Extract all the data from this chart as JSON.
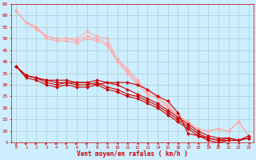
{
  "xlabel": "Vent moyen/en rafales ( km/h )",
  "bg_color": "#cceeff",
  "grid_color": "#aacccc",
  "xlim": [
    -0.5,
    23.5
  ],
  "ylim": [
    5,
    65
  ],
  "yticks": [
    5,
    10,
    15,
    20,
    25,
    30,
    35,
    40,
    45,
    50,
    55,
    60,
    65
  ],
  "xticks": [
    0,
    1,
    2,
    3,
    4,
    5,
    6,
    7,
    8,
    9,
    10,
    11,
    12,
    13,
    14,
    15,
    16,
    17,
    18,
    19,
    20,
    21,
    22,
    23
  ],
  "lines_light": [
    [
      62,
      57,
      54,
      51,
      50,
      50,
      50,
      53,
      51,
      50,
      41,
      37,
      32,
      27,
      25,
      21,
      16,
      14,
      11,
      10,
      11,
      10,
      14,
      8
    ],
    [
      62,
      57,
      55,
      51,
      50,
      50,
      49,
      51,
      50,
      48,
      41,
      36,
      31,
      27,
      25,
      21,
      17,
      14,
      11,
      10,
      11,
      10,
      14,
      8
    ],
    [
      62,
      57,
      55,
      50,
      49,
      49,
      48,
      50,
      49,
      47,
      40,
      35,
      30,
      26,
      24,
      20,
      16,
      14,
      11,
      10,
      11,
      10,
      14,
      8
    ]
  ],
  "lines_dark": [
    [
      38,
      34,
      33,
      32,
      31,
      31,
      31,
      31,
      30,
      31,
      31,
      31,
      30,
      28,
      25,
      23,
      18,
      9,
      8,
      7,
      6,
      6,
      6,
      8
    ],
    [
      38,
      34,
      33,
      32,
      32,
      32,
      31,
      31,
      32,
      31,
      30,
      28,
      26,
      24,
      22,
      19,
      16,
      13,
      10,
      8,
      7,
      7,
      6,
      7
    ],
    [
      38,
      34,
      33,
      31,
      30,
      31,
      30,
      30,
      31,
      29,
      28,
      26,
      25,
      23,
      21,
      18,
      15,
      12,
      9,
      7,
      6,
      7,
      6,
      7
    ],
    [
      38,
      33,
      32,
      30,
      29,
      30,
      29,
      29,
      30,
      28,
      27,
      25,
      24,
      22,
      20,
      17,
      14,
      11,
      8,
      6,
      5,
      6,
      6,
      7
    ]
  ],
  "dark_color": "#cc0000",
  "light_color": "#ffaaaa",
  "marker_size": 2.0,
  "linewidth": 0.8
}
